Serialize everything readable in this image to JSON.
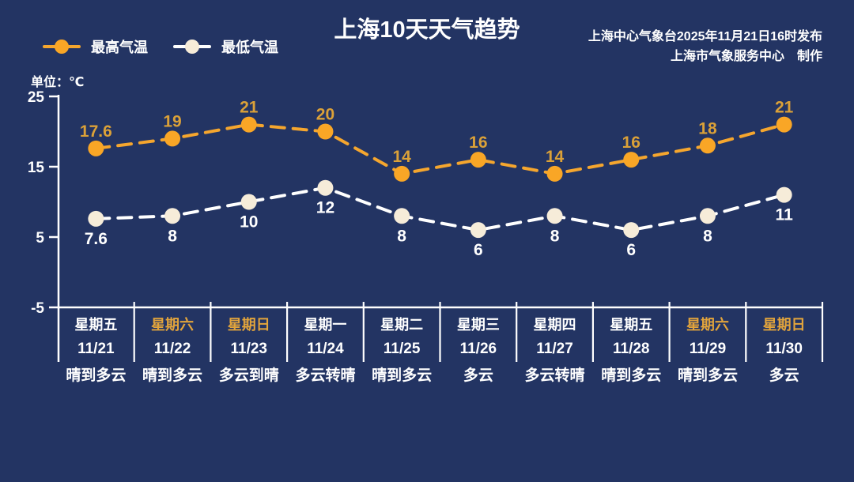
{
  "header": {
    "title": "上海10天天气趋势",
    "publisher_line1": "上海中心气象台2025年11月21日16时发布",
    "publisher_line2": "上海市气象服务中心　制作"
  },
  "legend": {
    "high_label": "最高气温",
    "low_label": "最低气温"
  },
  "unit_label": "单位：℃",
  "colors": {
    "background": "#233463",
    "high_line": "#F5A62E",
    "high_marker": "#F9A626",
    "high_value_label": "#DBA138",
    "low_line": "#FFFFFF",
    "low_marker": "#F6ECD9",
    "low_value_label": "#FFFFFF",
    "axis": "#FFFFFF",
    "weekend_label": "#E2A43C",
    "weekday_label": "#FFFFFF"
  },
  "chart_data": {
    "type": "line",
    "title": "上海10天天气趋势",
    "ylabel": "单位：℃",
    "ylim": [
      -5,
      25
    ],
    "yticks": [
      25,
      15,
      5,
      -5
    ],
    "grid": false,
    "legend_position": "top-left",
    "line_style": "dashed",
    "categories": [
      "11/21",
      "11/22",
      "11/23",
      "11/24",
      "11/25",
      "11/26",
      "11/27",
      "11/28",
      "11/29",
      "11/30"
    ],
    "series": [
      {
        "name": "最高气温",
        "values": [
          17.6,
          19,
          21,
          20,
          14,
          16,
          14,
          16,
          18,
          21
        ]
      },
      {
        "name": "最低气温",
        "values": [
          7.6,
          8,
          10,
          12,
          8,
          6,
          8,
          6,
          8,
          11
        ]
      }
    ],
    "days": [
      {
        "weekday": "星期五",
        "date": "11/21",
        "weather": "晴到多云",
        "weekend": false
      },
      {
        "weekday": "星期六",
        "date": "11/22",
        "weather": "晴到多云",
        "weekend": true
      },
      {
        "weekday": "星期日",
        "date": "11/23",
        "weather": "多云到晴",
        "weekend": true
      },
      {
        "weekday": "星期一",
        "date": "11/24",
        "weather": "多云转晴",
        "weekend": false
      },
      {
        "weekday": "星期二",
        "date": "11/25",
        "weather": "晴到多云",
        "weekend": false
      },
      {
        "weekday": "星期三",
        "date": "11/26",
        "weather": "多云",
        "weekend": false
      },
      {
        "weekday": "星期四",
        "date": "11/27",
        "weather": "多云转晴",
        "weekend": false
      },
      {
        "weekday": "星期五",
        "date": "11/28",
        "weather": "晴到多云",
        "weekend": false
      },
      {
        "weekday": "星期六",
        "date": "11/29",
        "weather": "晴到多云",
        "weekend": true
      },
      {
        "weekday": "星期日",
        "date": "11/30",
        "weather": "多云",
        "weekend": true
      }
    ]
  }
}
